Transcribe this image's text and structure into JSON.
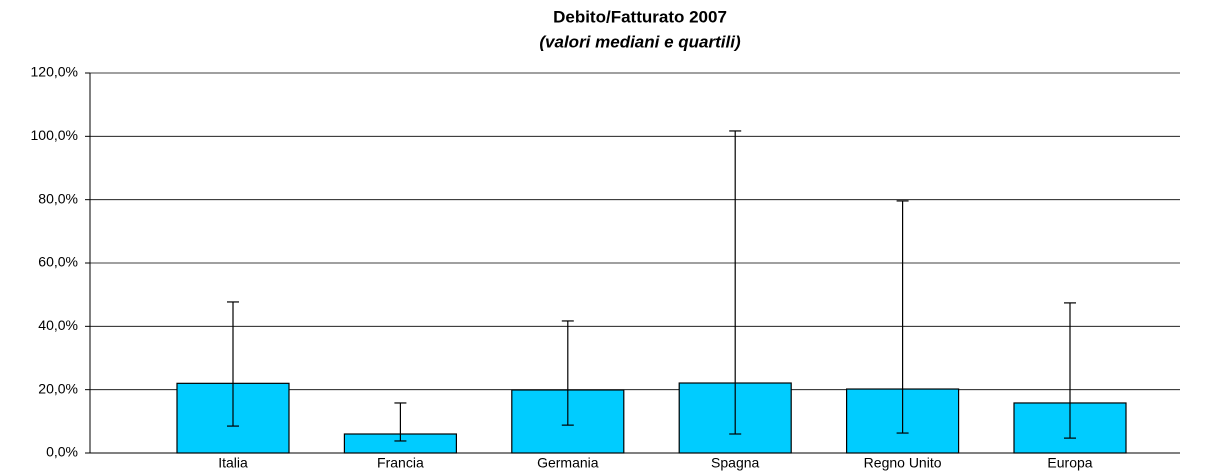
{
  "chart_data": {
    "type": "bar",
    "title": "Debito/Fatturato 2007",
    "subtitle": "(valori mediani e quartili)",
    "categories": [
      "Italia",
      "Francia",
      "Germania",
      "Spagna",
      "Regno Unito",
      "Europa"
    ],
    "values": [
      22,
      6,
      19.9,
      22.1,
      20.2,
      15.8
    ],
    "lower_quartile": [
      8.5,
      3.8,
      8.8,
      6,
      6.3,
      4.7
    ],
    "upper_quartile": [
      47.7,
      15.8,
      41.7,
      101.7,
      79.6,
      47.4
    ],
    "color": "#00ccff",
    "ylim": [
      0,
      120
    ],
    "yticks": [
      {
        "value": 0,
        "label": "0,0%"
      },
      {
        "value": 20,
        "label": "20,0%"
      },
      {
        "value": 40,
        "label": "40,0%"
      },
      {
        "value": 60,
        "label": "60,0%"
      },
      {
        "value": 80,
        "label": "80,0%"
      },
      {
        "value": 100,
        "label": "100,0%"
      },
      {
        "value": 120,
        "label": "120,0%"
      }
    ],
    "grid": true
  }
}
